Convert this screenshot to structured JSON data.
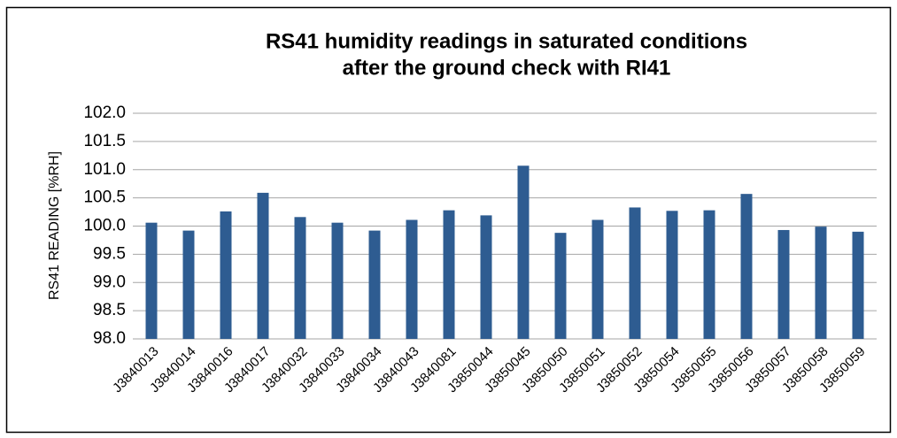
{
  "chart_data": {
    "type": "bar",
    "title": [
      "RS41 humidity readings in saturated conditions",
      "after the ground check with RI41"
    ],
    "y_label": "RS41 READING [%RH]",
    "categories": [
      "J3840013",
      "J3840014",
      "J3840016",
      "J3840017",
      "J3840032",
      "J3840033",
      "J3840034",
      "J3840043",
      "J3840081",
      "J3850044",
      "J3850045",
      "J3850050",
      "J3850051",
      "J3850052",
      "J3850054",
      "J3850055",
      "J3850056",
      "J3850057",
      "J3850058",
      "J3850059"
    ],
    "values": [
      100.06,
      99.92,
      100.26,
      100.59,
      100.16,
      100.06,
      99.92,
      100.11,
      100.28,
      100.19,
      101.07,
      99.88,
      100.11,
      100.33,
      100.27,
      100.28,
      100.57,
      99.93,
      99.99,
      99.9
    ],
    "color": "#2e5c91",
    "ylim": [
      98,
      102
    ],
    "yticks": [
      {
        "value": 98,
        "label": "98.0"
      },
      {
        "value": 98.5,
        "label": "98.5"
      },
      {
        "value": 99,
        "label": "99.0"
      },
      {
        "value": 99.5,
        "label": "99.5"
      },
      {
        "value": 100,
        "label": "100.0"
      },
      {
        "value": 100.5,
        "label": "100.5"
      },
      {
        "value": 101,
        "label": "101.0"
      },
      {
        "value": 101.5,
        "label": "101.5"
      },
      {
        "value": 102,
        "label": "102.0"
      }
    ],
    "grid": true
  }
}
